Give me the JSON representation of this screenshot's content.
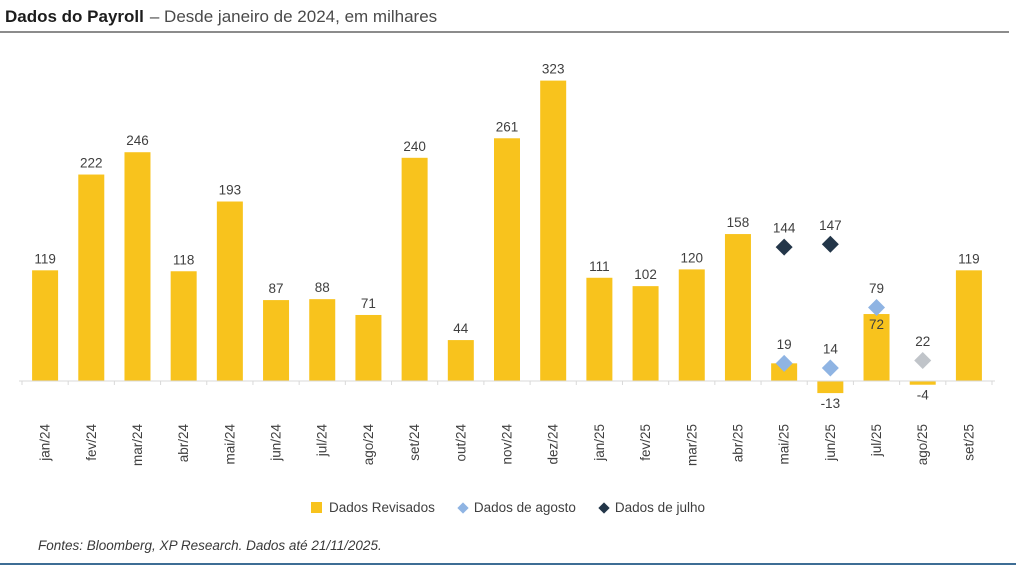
{
  "header": {
    "title_bold": "Dados do Payroll",
    "title_rest": "– Desde janeiro de 2024, em milhares"
  },
  "chart_data": {
    "type": "bar",
    "title": "Dados do Payroll – Desde janeiro de 2024, em milhares",
    "xlabel": "",
    "ylabel": "em milhares",
    "ylim": [
      -60,
      360
    ],
    "grid": false,
    "legend_position": "bottom",
    "categories": [
      "jan/24",
      "fev/24",
      "mar/24",
      "abr/24",
      "mai/24",
      "jun/24",
      "jul/24",
      "ago/24",
      "set/24",
      "out/24",
      "nov/24",
      "dez/24",
      "jan/25",
      "fev/25",
      "mar/25",
      "abr/25",
      "mai/25",
      "jun/25",
      "jul/25",
      "ago/25",
      "set/25"
    ],
    "bar_series": {
      "name": "Dados Revisados",
      "color": "#F8C31D",
      "values": [
        119,
        222,
        246,
        118,
        193,
        87,
        88,
        71,
        240,
        44,
        261,
        323,
        111,
        102,
        120,
        158,
        19,
        -13,
        72,
        -4,
        119
      ],
      "label_pos": [
        "above",
        "above",
        "above",
        "above",
        "above",
        "above",
        "above",
        "above",
        "above",
        "above",
        "above",
        "above",
        "above",
        "above",
        "above",
        "above",
        "none",
        "below",
        "inside",
        "below",
        "above"
      ]
    },
    "point_series": [
      {
        "name": "Dados de julho",
        "color": "#233649",
        "points": [
          {
            "category": "mai/25",
            "value": 144
          },
          {
            "category": "jun/25",
            "value": 147
          }
        ]
      },
      {
        "name": "Dados de agosto",
        "color": "#8FB4E3",
        "points": [
          {
            "category": "mai/25",
            "value": 19
          },
          {
            "category": "jun/25",
            "value": 14
          },
          {
            "category": "jul/25",
            "value": 79
          }
        ]
      },
      {
        "name": "",
        "color": "#C0C4C9",
        "points": [
          {
            "category": "ago/25",
            "value": 22
          }
        ]
      }
    ]
  },
  "legend": {
    "items": [
      {
        "label": "Dados Revisados",
        "marker": "square",
        "color": "#F8C31D"
      },
      {
        "label": "Dados de agosto",
        "marker": "diamond",
        "color": "#8FB4E3"
      },
      {
        "label": "Dados de julho",
        "marker": "diamond",
        "color": "#233649"
      }
    ]
  },
  "footer": {
    "source": "Fontes: Bloomberg, XP Research. Dados até 21/11/2025."
  },
  "colors": {
    "bar": "#F8C31D",
    "diamond_august": "#8FB4E3",
    "diamond_july": "#233649",
    "diamond_gray": "#C0C4C9",
    "axis": "#D9D9D9",
    "value_label": "#3f3f3f",
    "title_rule": "#8c8c8c",
    "bottom_rule": "#3e6d95"
  }
}
